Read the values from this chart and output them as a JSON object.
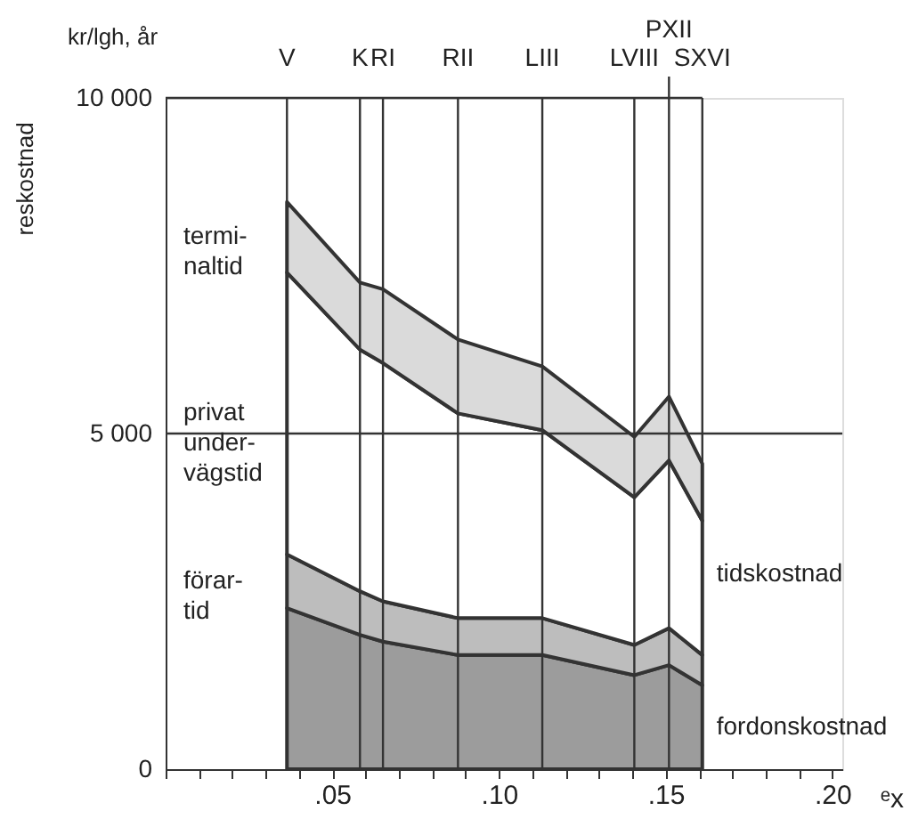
{
  "chart_data": {
    "type": "area",
    "stacked": true,
    "legend": false,
    "xlabel": "ᵉx",
    "ylabel": "reskostnad",
    "x": [
      0.0364,
      0.0583,
      0.0652,
      0.0877,
      0.113,
      0.1406,
      0.151,
      0.161
    ],
    "series": [
      {
        "name": "fordonskostnad",
        "color": "#9c9c9c",
        "values": [
          2400,
          2000,
          1900,
          1700,
          1700,
          1400,
          1550,
          1250
        ]
      },
      {
        "name": "förar-\ntid",
        "color": "#bdbdbd",
        "values": [
          800,
          650,
          600,
          550,
          550,
          450,
          550,
          450
        ]
      },
      {
        "name": "privat\nunder-\nvägstid",
        "color": "#ffffff",
        "values": [
          4200,
          3600,
          3550,
          3050,
          2800,
          2200,
          2500,
          2000
        ]
      },
      {
        "name": "termi-\nnaltid",
        "color": "#dadada",
        "values": [
          1050,
          1000,
          1100,
          1100,
          950,
          900,
          950,
          850
        ]
      }
    ],
    "xlim": [
      0,
      0.203
    ],
    "ylim": [
      0,
      10000
    ],
    "xticks": [
      {
        "value": 0,
        "label": null
      },
      {
        "value": 0.01,
        "label": null
      },
      {
        "value": 0.02,
        "label": null
      },
      {
        "value": 0.03,
        "label": null
      },
      {
        "value": 0.04,
        "label": null
      },
      {
        "value": 0.05,
        "label": ".05"
      },
      {
        "value": 0.06,
        "label": null
      },
      {
        "value": 0.07,
        "label": null
      },
      {
        "value": 0.08,
        "label": null
      },
      {
        "value": 0.09,
        "label": null
      },
      {
        "value": 0.1,
        "label": ".10"
      },
      {
        "value": 0.11,
        "label": null
      },
      {
        "value": 0.12,
        "label": null
      },
      {
        "value": 0.13,
        "label": null
      },
      {
        "value": 0.14,
        "label": null
      },
      {
        "value": 0.15,
        "label": ".15"
      },
      {
        "value": 0.16,
        "label": null
      },
      {
        "value": 0.17,
        "label": null
      },
      {
        "value": 0.18,
        "label": null
      },
      {
        "value": 0.19,
        "label": null
      },
      {
        "value": 0.2,
        "label": ".20"
      }
    ],
    "yticks": [
      {
        "value": 0,
        "label": "0"
      },
      {
        "value": 5000,
        "label": "5 000"
      },
      {
        "value": 10000,
        "label": "10 000"
      }
    ],
    "ref_lines": [
      {
        "axis": "y",
        "value": 5000
      },
      {
        "axis": "x",
        "value": 0.0364,
        "label": "V"
      },
      {
        "axis": "x",
        "value": 0.0583,
        "label": "K"
      },
      {
        "axis": "x",
        "value": 0.0652,
        "label": "RI"
      },
      {
        "axis": "x",
        "value": 0.0877,
        "label": "RII"
      },
      {
        "axis": "x",
        "value": 0.113,
        "label": "LIII"
      },
      {
        "axis": "x",
        "value": 0.1406,
        "label": "LVIII"
      },
      {
        "axis": "x",
        "value": 0.151,
        "label": "PXII"
      },
      {
        "axis": "x",
        "value": 0.161,
        "label": "SXVI"
      }
    ],
    "annotations": [
      "kr/lgh, år",
      "tidskostnad"
    ]
  }
}
